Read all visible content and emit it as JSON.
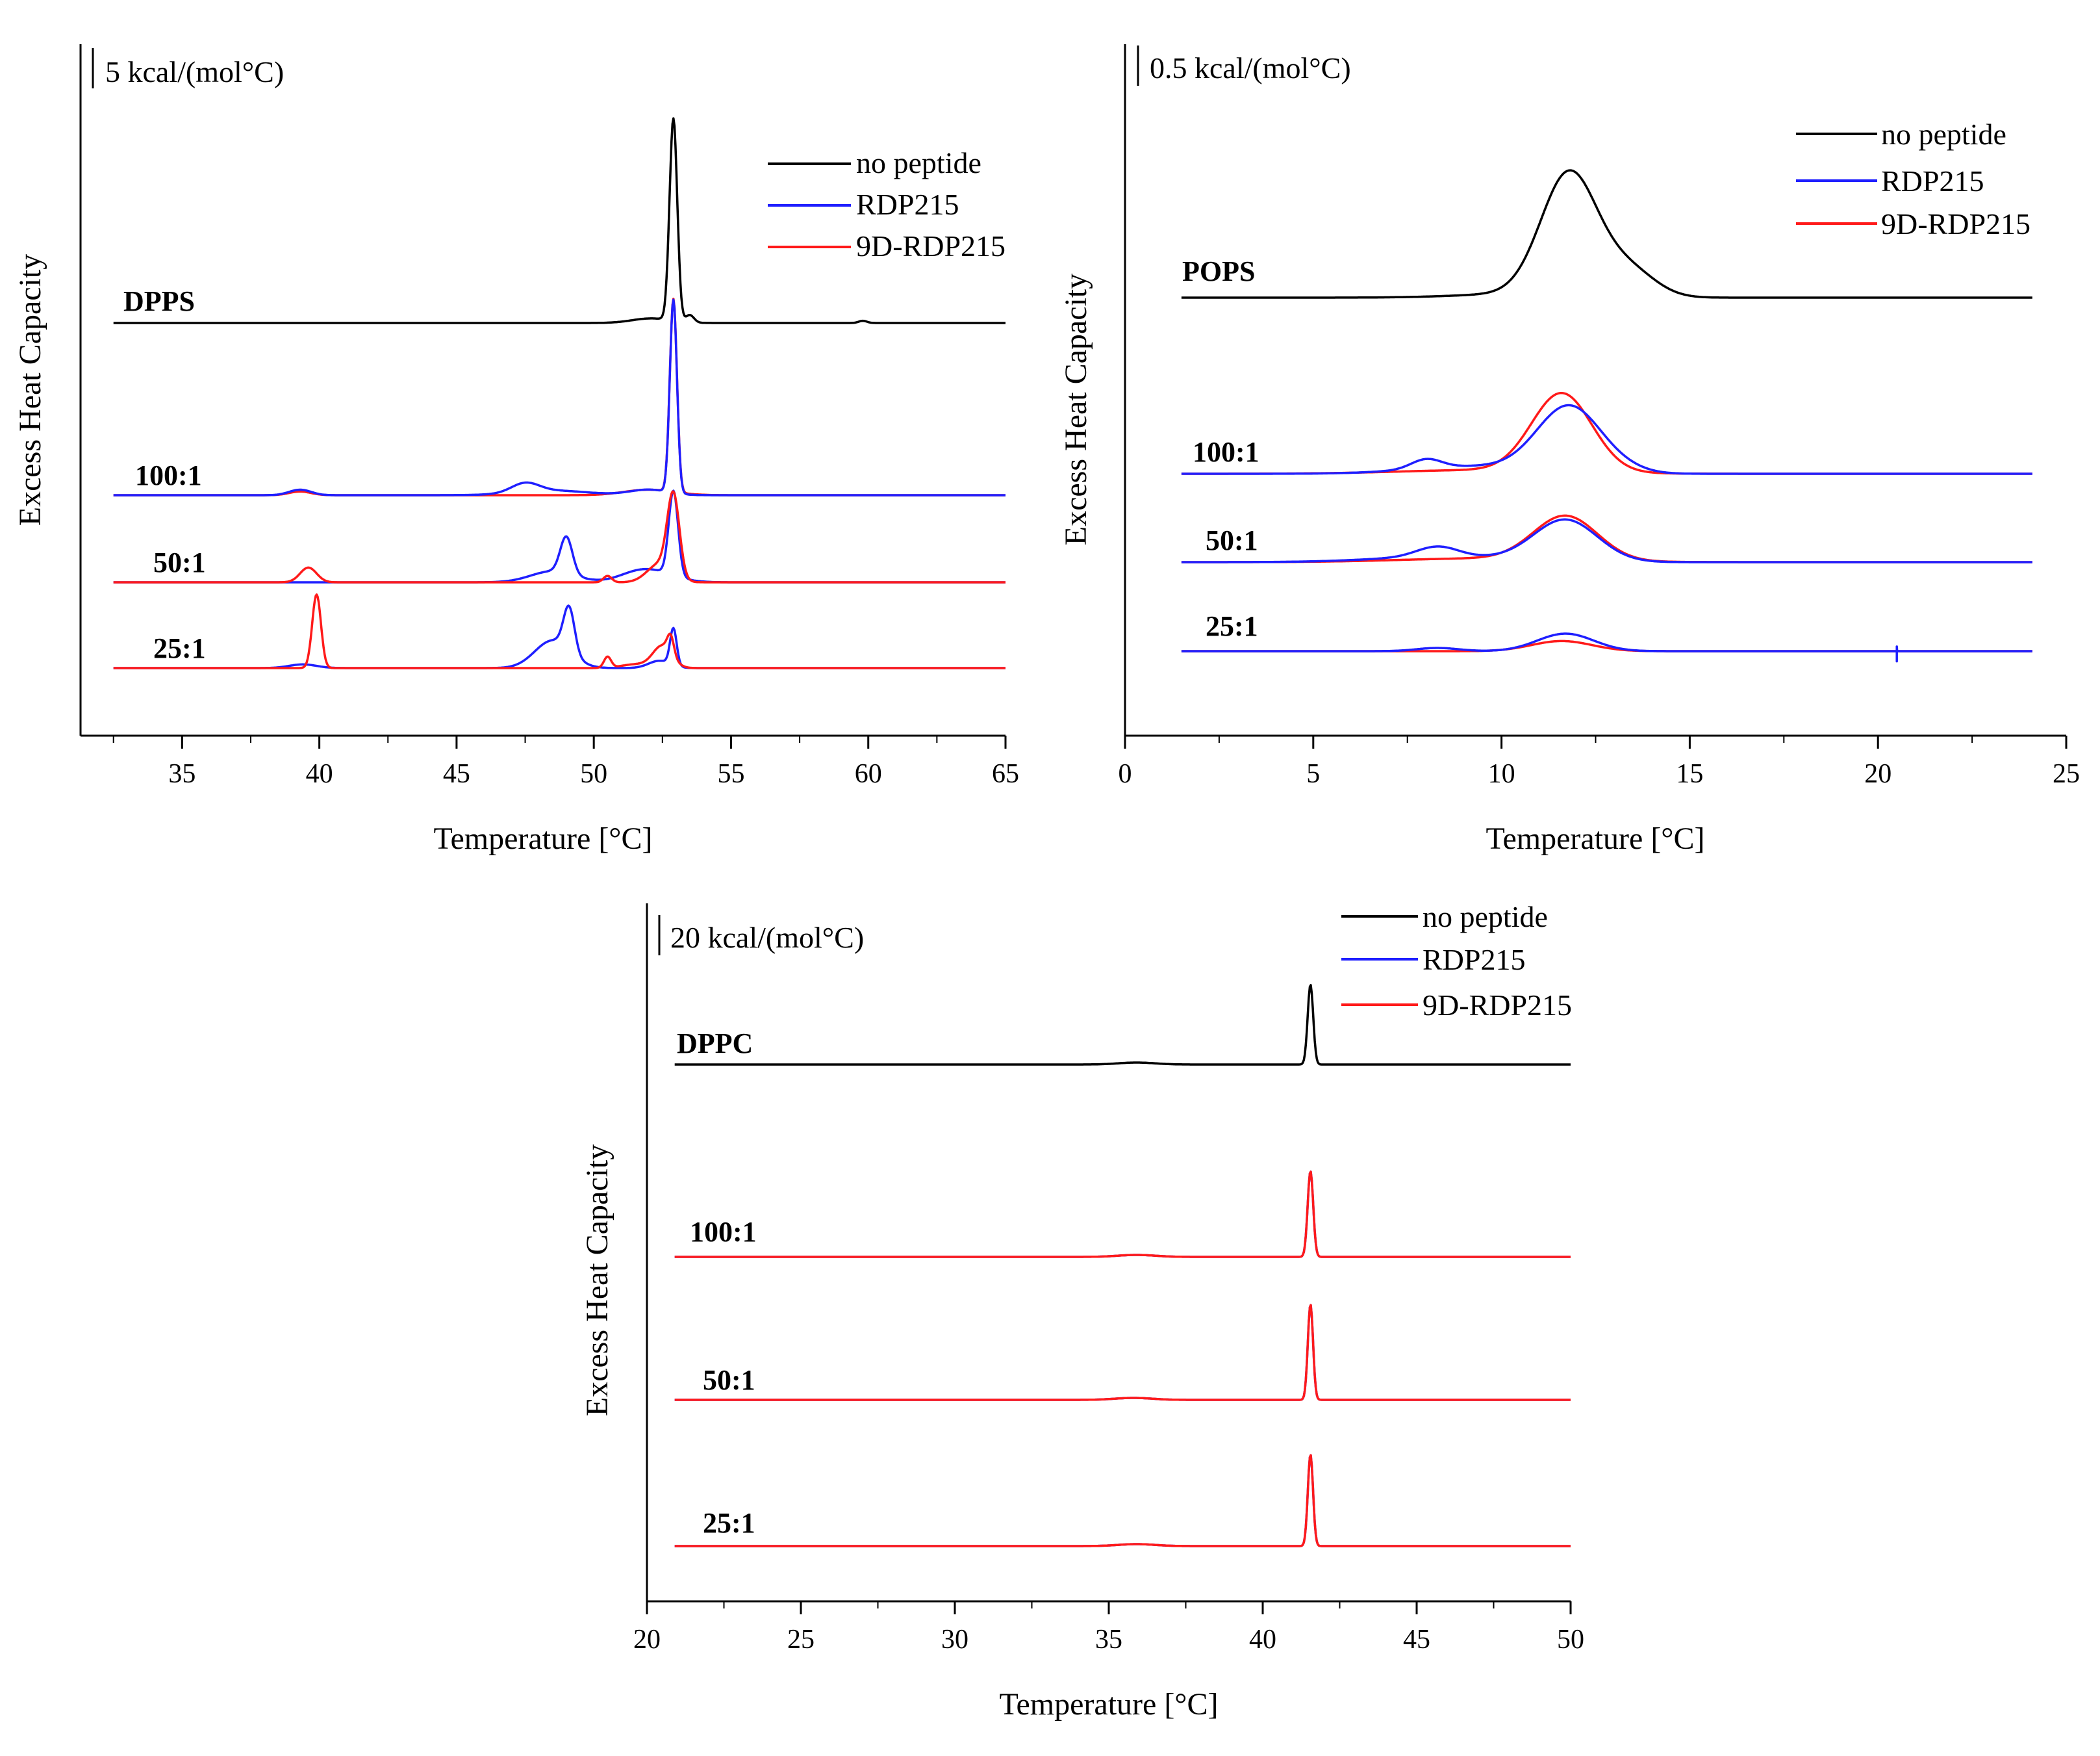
{
  "figure_domain": "Chart",
  "chart_data": [
    {
      "name": "DPPS",
      "type": "line",
      "title": "",
      "xlabel": "Temperature [°C]",
      "ylabel": "Excess Heat Capacity",
      "xlim": [
        31.3,
        65
      ],
      "xticks": [
        35,
        40,
        45,
        50,
        55,
        60,
        65
      ],
      "scale_bar": "5 kcal/(mol°C)",
      "scale_bar_value": 5,
      "x_range": [
        32.5,
        65
      ],
      "legend": [
        {
          "name": "no peptide",
          "color": "#000000"
        },
        {
          "name": "RDP215",
          "color": "#1f1fff"
        },
        {
          "name": "9D-RDP215",
          "color": "#ff1a1a"
        }
      ],
      "groups": [
        {
          "label": "DPPS",
          "baseline": 12.0,
          "traces": [
            {
              "series": "no peptide",
              "peaks": [
                [
                  52.9,
                  11.0,
                  0.14
                ],
                [
                  53.5,
                  0.4,
                  0.15
                ],
                [
                  52.1,
                  0.25,
                  0.7
                ],
                [
                  59.8,
                  0.12,
                  0.15
                ]
              ]
            }
          ]
        },
        {
          "label": "100:1",
          "baseline": 2.0,
          "traces": [
            {
              "series": "9D-RDP215",
              "peaks": [
                [
                  52.9,
                  10.5,
                  0.13
                ],
                [
                  52.0,
                  0.3,
                  0.9
                ],
                [
                  39.3,
                  0.2,
                  0.4
                ]
              ]
            },
            {
              "series": "RDP215",
              "peaks": [
                [
                  52.9,
                  10.5,
                  0.13
                ],
                [
                  47.5,
                  0.5,
                  0.5
                ],
                [
                  48.5,
                  0.25,
                  1.3
                ],
                [
                  39.3,
                  0.3,
                  0.4
                ],
                [
                  52.0,
                  0.3,
                  0.7
                ]
              ]
            }
          ]
        },
        {
          "label": "50:1",
          "baseline": -3.0,
          "traces": [
            {
              "series": "RDP215",
              "peaks": [
                [
                  52.9,
                  4.6,
                  0.17
                ],
                [
                  49.0,
                  2.0,
                  0.22
                ],
                [
                  48.5,
                  0.6,
                  0.8
                ],
                [
                  52.2,
                  0.5,
                  0.8
                ],
                [
                  51.5,
                  0.3,
                  0.7
                ]
              ]
            },
            {
              "series": "9D-RDP215",
              "peaks": [
                [
                  52.9,
                  4.4,
                  0.22
                ],
                [
                  52.4,
                  1.0,
                  0.45
                ],
                [
                  39.6,
                  0.8,
                  0.3
                ],
                [
                  50.5,
                  0.35,
                  0.15
                ]
              ]
            }
          ]
        },
        {
          "label": "25:1",
          "baseline": -8.0,
          "traces": [
            {
              "series": "RDP215",
              "peaks": [
                [
                  49.1,
                  2.4,
                  0.2
                ],
                [
                  48.5,
                  1.5,
                  0.65
                ],
                [
                  52.9,
                  2.0,
                  0.12
                ],
                [
                  39.4,
                  0.2,
                  0.5
                ],
                [
                  52.4,
                  0.4,
                  0.4
                ]
              ]
            },
            {
              "series": "9D-RDP215",
              "peaks": [
                [
                  39.9,
                  4.0,
                  0.16
                ],
                [
                  52.5,
                  1.2,
                  0.35
                ],
                [
                  52.8,
                  1.0,
                  0.12
                ],
                [
                  50.5,
                  0.6,
                  0.13
                ],
                [
                  51.5,
                  0.2,
                  0.5
                ]
              ]
            }
          ]
        }
      ],
      "sample_labels": [
        "DPPS",
        "100:1",
        "50:1",
        "25:1"
      ]
    },
    {
      "name": "POPS",
      "type": "line",
      "title": "",
      "xlabel": "Temperature [°C]",
      "ylabel": "Excess Heat Capacity",
      "xlim": [
        0,
        25
      ],
      "xticks": [
        0,
        5,
        10,
        15,
        20,
        25
      ],
      "scale_bar": "0.5 kcal/(mol°C)",
      "scale_bar_value": 0.5,
      "x_range": [
        1.5,
        24.1
      ],
      "legend": [
        {
          "name": "no peptide",
          "color": "#000000"
        },
        {
          "name": "RDP215",
          "color": "#1f1fff"
        },
        {
          "name": "9D-RDP215",
          "color": "#ff1a1a"
        }
      ],
      "groups": [
        {
          "label": "POPS",
          "baseline": 1.7,
          "traces": [
            {
              "series": "no peptide",
              "peaks": [
                [
                  11.8,
                  1.33,
                  0.75
                ],
                [
                  13.4,
                  0.28,
                  0.7
                ],
                [
                  10.5,
                  0.04,
                  1.6
                ]
              ]
            }
          ]
        },
        {
          "label": "100:1",
          "baseline": 0.75,
          "traces": [
            {
              "series": "9D-RDP215",
              "peaks": [
                [
                  11.6,
                  0.85,
                  0.8
                ],
                [
                  9.5,
                  0.04,
                  2.2
                ]
              ]
            },
            {
              "series": "RDP215",
              "peaks": [
                [
                  11.8,
                  0.72,
                  0.85
                ],
                [
                  8.0,
                  0.1,
                  0.4
                ],
                [
                  9.2,
                  0.08,
                  1.6
                ],
                [
                  13.3,
                  0.03,
                  0.6
                ]
              ]
            }
          ]
        },
        {
          "label": "50:1",
          "baseline": 0.28,
          "traces": [
            {
              "series": "9D-RDP215",
              "peaks": [
                [
                  11.7,
                  0.48,
                  0.85
                ],
                [
                  9.5,
                  0.04,
                  2.2
                ]
              ]
            },
            {
              "series": "RDP215",
              "peaks": [
                [
                  11.7,
                  0.45,
                  0.85
                ],
                [
                  8.3,
                  0.11,
                  0.55
                ],
                [
                  8.5,
                  0.06,
                  1.8
                ]
              ]
            }
          ]
        },
        {
          "label": "25:1",
          "baseline": -0.19,
          "traces": [
            {
              "series": "9D-RDP215",
              "peaks": [
                [
                  11.6,
                  0.11,
                  0.8
                ]
              ]
            },
            {
              "series": "RDP215",
              "peaks": [
                [
                  11.7,
                  0.19,
                  0.75
                ],
                [
                  8.3,
                  0.035,
                  0.55
                ]
              ],
              "spike": [
                20.5,
                0.05
              ]
            }
          ]
        }
      ],
      "sample_labels": [
        "POPS",
        "100:1",
        "50:1",
        "25:1"
      ]
    },
    {
      "name": "DPPC",
      "type": "line",
      "title": "",
      "xlabel": "Temperature [°C]",
      "ylabel": "Excess Heat Capacity",
      "xlim": [
        20,
        50
      ],
      "xticks": [
        20,
        25,
        30,
        35,
        40,
        45,
        50
      ],
      "scale_bar": "20 kcal/(mol°C)",
      "scale_bar_value": 20,
      "x_range": [
        20.9,
        50
      ],
      "legend": [
        {
          "name": "no peptide",
          "color": "#000000"
        },
        {
          "name": "RDP215",
          "color": "#1f1fff"
        },
        {
          "name": "9D-RDP215",
          "color": "#ff1a1a"
        }
      ],
      "groups": [
        {
          "label": "DPPC",
          "baseline": 41.0,
          "traces": [
            {
              "series": "no peptide",
              "peaks": [
                [
                  41.55,
                  41.0,
                  0.09
                ],
                [
                  35.9,
                  1.0,
                  0.6
                ]
              ]
            }
          ]
        },
        {
          "label": "100:1",
          "baseline": 3.0,
          "traces": [
            {
              "series": "RDP215",
              "peaks": [
                [
                  41.55,
                  44.0,
                  0.09
                ],
                [
                  35.9,
                  1.0,
                  0.6
                ]
              ]
            },
            {
              "series": "9D-RDP215",
              "peaks": [
                [
                  41.55,
                  44.0,
                  0.09
                ],
                [
                  35.9,
                  1.0,
                  0.6
                ]
              ]
            }
          ]
        },
        {
          "label": "50:1",
          "baseline": -26.0,
          "traces": [
            {
              "series": "RDP215",
              "peaks": [
                [
                  41.55,
                  49.0,
                  0.085
                ],
                [
                  35.8,
                  1.0,
                  0.6
                ]
              ]
            },
            {
              "series": "9D-RDP215",
              "peaks": [
                [
                  41.55,
                  49.0,
                  0.085
                ],
                [
                  35.8,
                  1.0,
                  0.6
                ]
              ]
            }
          ]
        },
        {
          "label": "25:1",
          "baseline": -55.0,
          "traces": [
            {
              "series": "RDP215",
              "peaks": [
                [
                  41.55,
                  47.0,
                  0.085
                ],
                [
                  35.9,
                  1.0,
                  0.6
                ]
              ]
            },
            {
              "series": "9D-RDP215",
              "peaks": [
                [
                  41.55,
                  47.0,
                  0.085
                ],
                [
                  35.9,
                  1.0,
                  0.6
                ]
              ]
            }
          ]
        }
      ],
      "sample_labels": [
        "DPPC",
        "100:1",
        "50:1",
        "25:1"
      ]
    }
  ]
}
